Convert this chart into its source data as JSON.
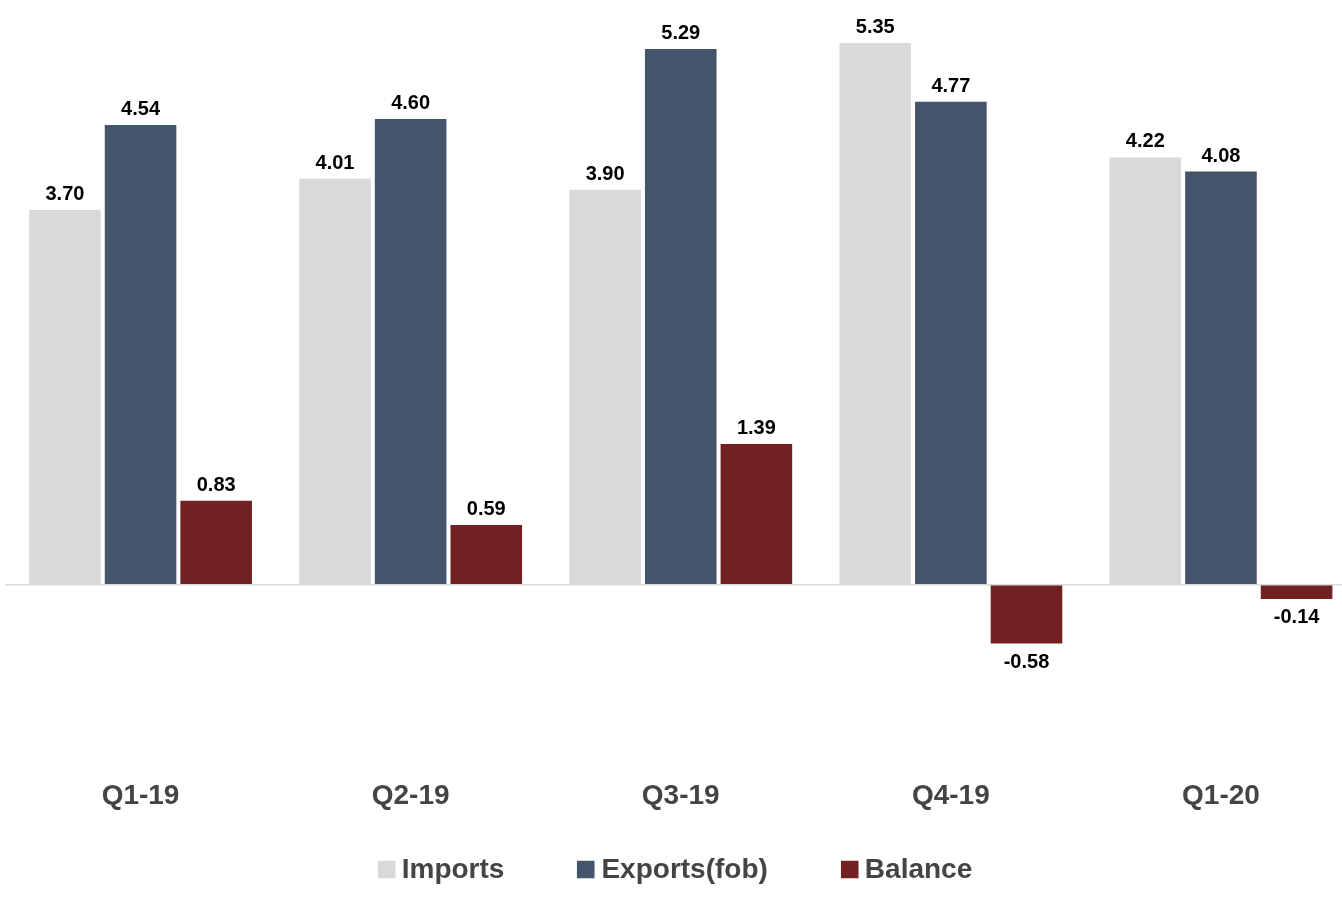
{
  "chart_data": {
    "type": "bar",
    "categories": [
      "Q1-19",
      "Q2-19",
      "Q3-19",
      "Q4-19",
      "Q1-20"
    ],
    "series": [
      {
        "name": "Imports",
        "color": "#d9d9d9",
        "values": [
          3.7,
          4.01,
          3.9,
          5.35,
          4.22
        ],
        "value_labels": [
          "3.70",
          "4.01",
          "3.90",
          "5.35",
          "4.22"
        ]
      },
      {
        "name": "Exports(fob)",
        "color": "#44546a",
        "values": [
          4.54,
          4.6,
          5.29,
          4.77,
          4.08
        ],
        "value_labels": [
          "4.54",
          "4.60",
          "5.29",
          "4.77",
          "4.08"
        ]
      },
      {
        "name": "Balance",
        "color": "#722022",
        "values": [
          0.83,
          0.59,
          1.39,
          -0.58,
          -0.14
        ],
        "value_labels": [
          "0.83",
          "0.59",
          "1.39",
          "-0.58",
          "-0.14"
        ]
      }
    ],
    "data_labels": true,
    "legend": "bottom",
    "grid": false
  }
}
